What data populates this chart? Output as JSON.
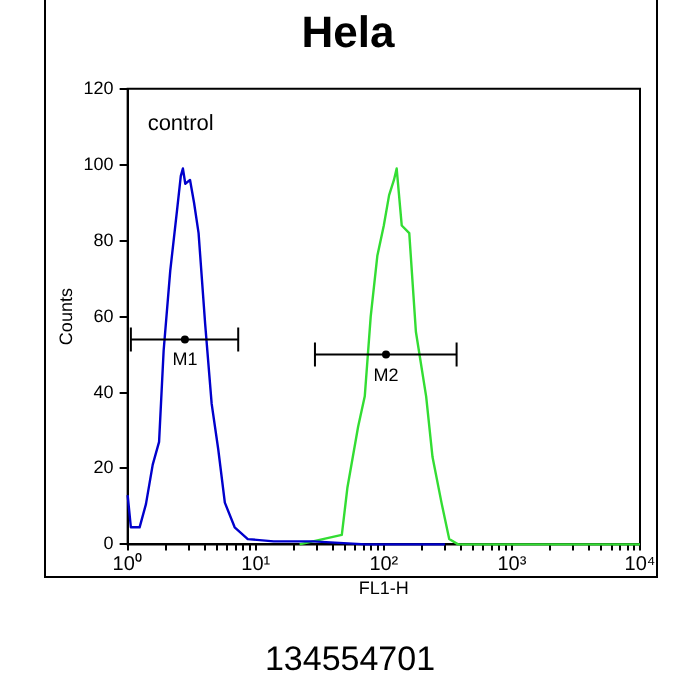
{
  "chart_data": {
    "type": "line",
    "title": "Hela",
    "xlabel": "FL1-H",
    "ylabel": "Counts",
    "log": "x",
    "xlim": [
      1,
      10000
    ],
    "xticks": [
      {
        "value": 1,
        "label": "10⁰"
      },
      {
        "value": 2,
        "label": null
      },
      {
        "value": 3,
        "label": null
      },
      {
        "value": 4,
        "label": null
      },
      {
        "value": 5,
        "label": null
      },
      {
        "value": 6,
        "label": null
      },
      {
        "value": 7,
        "label": null
      },
      {
        "value": 8,
        "label": null
      },
      {
        "value": 9,
        "label": null
      },
      {
        "value": 10,
        "label": "10¹"
      },
      {
        "value": 20,
        "label": null
      },
      {
        "value": 30,
        "label": null
      },
      {
        "value": 40,
        "label": null
      },
      {
        "value": 50,
        "label": null
      },
      {
        "value": 60,
        "label": null
      },
      {
        "value": 70,
        "label": null
      },
      {
        "value": 80,
        "label": null
      },
      {
        "value": 90,
        "label": null
      },
      {
        "value": 100,
        "label": "10²"
      },
      {
        "value": 200,
        "label": null
      },
      {
        "value": 300,
        "label": null
      },
      {
        "value": 400,
        "label": null
      },
      {
        "value": 500,
        "label": null
      },
      {
        "value": 600,
        "label": null
      },
      {
        "value": 700,
        "label": null
      },
      {
        "value": 800,
        "label": null
      },
      {
        "value": 900,
        "label": null
      },
      {
        "value": 1000,
        "label": "10³"
      },
      {
        "value": 2000,
        "label": null
      },
      {
        "value": 3000,
        "label": null
      },
      {
        "value": 4000,
        "label": null
      },
      {
        "value": 5000,
        "label": null
      },
      {
        "value": 6000,
        "label": null
      },
      {
        "value": 7000,
        "label": null
      },
      {
        "value": 8000,
        "label": null
      },
      {
        "value": 9000,
        "label": null
      },
      {
        "value": 10000,
        "label": "10⁴"
      }
    ],
    "ylim": [
      0,
      120
    ],
    "yticks": [
      0,
      20,
      40,
      60,
      80,
      100,
      120
    ],
    "grid": false,
    "legend": false,
    "marker": "none",
    "line_style": "solid",
    "series": [
      {
        "color": "#0000cc",
        "x": [
          1,
          1.06,
          1.24,
          1.39,
          1.57,
          1.76,
          1.91,
          2.15,
          2.43,
          2.6,
          2.7,
          2.82,
          3.07,
          3.3,
          3.58,
          4.03,
          4.53,
          5.1,
          5.74,
          6.85,
          8.67,
          13.8,
          28,
          72,
          300
        ],
        "values": [
          13,
          4.5,
          4.5,
          10.6,
          21,
          27,
          51,
          72,
          88,
          97,
          99,
          95,
          96,
          90,
          82,
          58,
          37,
          25,
          11,
          4.5,
          1.4,
          0.8,
          0.8,
          0,
          0
        ]
      },
      {
        "color": "#33dd33",
        "x": [
          22,
          47,
          52,
          63,
          71,
          79,
          89,
          100,
          110,
          120,
          126,
          138,
          158,
          178,
          214,
          240,
          282,
          324,
          380,
          10000
        ],
        "values": [
          0,
          2.5,
          15,
          31,
          39,
          60,
          76,
          84,
          92,
          96,
          99,
          84,
          82,
          56,
          39,
          23,
          11,
          1.4,
          0,
          0
        ]
      },
      {
        "type": "scatter",
        "marker": "circle",
        "name": "M1",
        "color": "#000000",
        "x": [
          2.8
        ],
        "values": [
          54
        ],
        "xerrors": [
          [
            1.06,
            7.3
          ]
        ]
      },
      {
        "type": "scatter",
        "marker": "circle",
        "name": "M2",
        "color": "#000000",
        "x": [
          104
        ],
        "values": [
          50
        ],
        "xerrors": [
          [
            29,
            370
          ]
        ]
      }
    ],
    "annotations": [
      "control",
      "134554701"
    ]
  }
}
